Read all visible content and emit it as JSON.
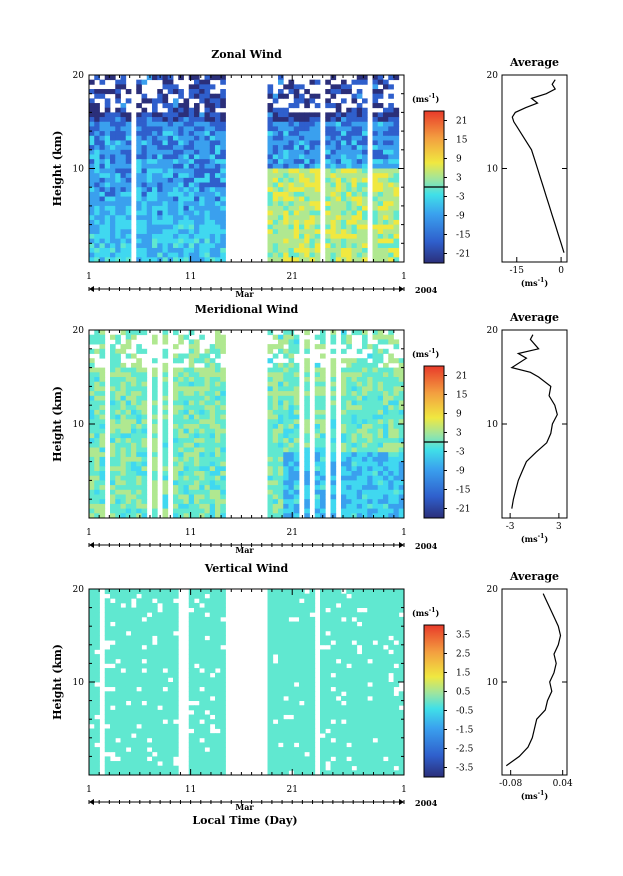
{
  "chart_data": [
    {
      "type": "heatmap",
      "title": "Zonal Wind",
      "ylabel": "Height (km)",
      "ylim": [
        0,
        20
      ],
      "yticks": [
        10,
        20
      ],
      "xticks": [
        "1",
        "11",
        "21",
        "1"
      ],
      "month_label": "Mar",
      "year_label": "2004",
      "data_gap_days": [
        14.5,
        18.5
      ],
      "colorbar": {
        "unit_base": "(ms",
        "unit_exp": "-1",
        "unit_close": ")",
        "ticks": [
          "21",
          "15",
          "9",
          "3",
          "-3",
          "-9",
          "-15",
          "-21"
        ],
        "range": [
          -24,
          24
        ],
        "zero_line": true
      },
      "profile": {
        "title": "Average",
        "xlabel_base": "(ms",
        "xlabel_exp": "-1",
        "xlabel_close": ")",
        "xticks": [
          "-15",
          "0"
        ],
        "xtick_values": [
          -15,
          0
        ],
        "xlim": [
          -20,
          2
        ],
        "heights": [
          1,
          2,
          3,
          4,
          5,
          6,
          7,
          8,
          9,
          10,
          11,
          12,
          13,
          14,
          14.5,
          15,
          15.5,
          16,
          16.5,
          17,
          17.5,
          18,
          18.5,
          19,
          19.5
        ],
        "values": [
          1,
          0,
          -1,
          -2,
          -3,
          -4,
          -5,
          -6,
          -7,
          -8,
          -9,
          -10,
          -12,
          -14,
          -15,
          -16,
          -16.5,
          -15.5,
          -12,
          -8,
          -10,
          -5,
          -2,
          -3,
          -2
        ]
      }
    },
    {
      "type": "heatmap",
      "title": "Meridional Wind",
      "ylabel": "Height (km)",
      "ylim": [
        0,
        20
      ],
      "yticks": [
        10,
        20
      ],
      "xticks": [
        "1",
        "11",
        "21",
        "1"
      ],
      "month_label": "Mar",
      "year_label": "2004",
      "data_gap_days": [
        14.5,
        18.5
      ],
      "colorbar": {
        "unit_base": "(ms",
        "unit_exp": "-1",
        "unit_close": ")",
        "ticks": [
          "21",
          "15",
          "9",
          "3",
          "-3",
          "-9",
          "-15",
          "-21"
        ],
        "range": [
          -24,
          24
        ],
        "zero_line": true
      },
      "profile": {
        "title": "Average",
        "xlabel_base": "(ms",
        "xlabel_exp": "-1",
        "xlabel_close": ")",
        "xticks": [
          "-3",
          "3"
        ],
        "xtick_values": [
          -3,
          3
        ],
        "xlim": [
          -4,
          4
        ],
        "heights": [
          1,
          2,
          3,
          4,
          5,
          6,
          7,
          8,
          9,
          10,
          11,
          12,
          13,
          14,
          15,
          15.5,
          16,
          17,
          17.5,
          18,
          19,
          19.5
        ],
        "values": [
          -2.8,
          -2.6,
          -2.3,
          -2,
          -1.5,
          -1,
          0.2,
          1.5,
          2,
          2.2,
          2.8,
          2.5,
          1.8,
          2,
          0.5,
          -0.5,
          -2.8,
          -1,
          -2,
          0.5,
          -0.5,
          -0.2
        ]
      }
    },
    {
      "type": "heatmap",
      "title": "Vertical Wind",
      "ylabel": "Height (km)",
      "xlabel": "Local Time (Day)",
      "ylim": [
        0,
        20
      ],
      "yticks": [
        10,
        20
      ],
      "xticks": [
        "1",
        "11",
        "21",
        "1"
      ],
      "month_label": "Mar",
      "year_label": "2004",
      "data_gap_days": [
        14.5,
        18.5
      ],
      "colorbar": {
        "unit_base": "(ms",
        "unit_exp": "-1",
        "unit_close": ")",
        "ticks": [
          "3.5",
          "2.5",
          "1.5",
          "0.5",
          "-0.5",
          "-1.5",
          "-2.5",
          "-3.5"
        ],
        "range": [
          -4,
          4
        ],
        "zero_line": false
      },
      "profile": {
        "title": "Average",
        "xlabel_base": "(ms",
        "xlabel_exp": "-1",
        "xlabel_close": ")",
        "xticks": [
          "-0.08",
          "0.04"
        ],
        "xtick_values": [
          -0.08,
          0.04
        ],
        "xlim": [
          -0.1,
          0.05
        ],
        "heights": [
          1,
          2,
          3,
          4,
          5,
          6,
          7,
          8,
          9,
          10,
          11,
          12,
          13,
          14,
          15,
          16,
          17,
          18,
          19,
          19.5
        ],
        "values": [
          -0.09,
          -0.06,
          -0.04,
          -0.03,
          -0.025,
          -0.02,
          0,
          0.005,
          0.015,
          0.01,
          0.02,
          0.025,
          0.02,
          0.03,
          0.035,
          0.03,
          0.02,
          0.01,
          0,
          -0.005
        ]
      }
    }
  ]
}
